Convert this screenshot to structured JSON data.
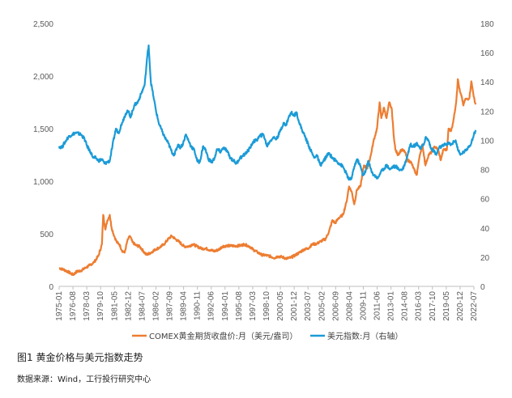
{
  "caption": "图1  黄金价格与美元指数走势",
  "source": "数据来源：Wind，工行投行研究中心",
  "chart_data": {
    "type": "line",
    "title": "",
    "x_categories": [
      "1975-01",
      "1976-08",
      "1978-03",
      "1979-10",
      "1981-05",
      "1982-12",
      "1984-07",
      "1986-02",
      "1987-09",
      "1989-04",
      "1990-11",
      "1992-06",
      "1994-01",
      "1995-08",
      "1997-03",
      "1998-10",
      "2000-05",
      "2001-12",
      "2003-07",
      "2005-02",
      "2006-09",
      "2008-04",
      "2009-11",
      "2011-06",
      "2013-01",
      "2014-08",
      "2016-03",
      "2017-10",
      "2019-05",
      "2020-12",
      "2022-07"
    ],
    "y_left": {
      "ticks": [
        "0",
        "500",
        "1,000",
        "1,500",
        "2,000",
        "2,500"
      ],
      "range": [
        0,
        2500
      ]
    },
    "y_right": {
      "ticks": [
        "0",
        "20",
        "40",
        "60",
        "80",
        "100",
        "120",
        "140",
        "160",
        "180"
      ],
      "range": [
        0,
        180
      ]
    },
    "grid": false,
    "legend_position": "bottom",
    "series": [
      {
        "name": "COMEX黄金期货收盘价:月（美元/盎司）",
        "axis": "left",
        "color": "#ED7D31",
        "points": [
          [
            1975.0,
            175
          ],
          [
            1975.5,
            160
          ],
          [
            1976.0,
            140
          ],
          [
            1976.6,
            110
          ],
          [
            1977.0,
            140
          ],
          [
            1977.5,
            150
          ],
          [
            1978.0,
            175
          ],
          [
            1978.5,
            200
          ],
          [
            1979.0,
            230
          ],
          [
            1979.5,
            290
          ],
          [
            1979.9,
            400
          ],
          [
            1980.05,
            680
          ],
          [
            1980.3,
            540
          ],
          [
            1980.5,
            620
          ],
          [
            1980.8,
            680
          ],
          [
            1981.0,
            560
          ],
          [
            1981.3,
            480
          ],
          [
            1981.6,
            420
          ],
          [
            1981.9,
            400
          ],
          [
            1982.2,
            340
          ],
          [
            1982.5,
            320
          ],
          [
            1982.8,
            430
          ],
          [
            1983.1,
            480
          ],
          [
            1983.4,
            420
          ],
          [
            1983.8,
            390
          ],
          [
            1984.2,
            380
          ],
          [
            1984.6,
            340
          ],
          [
            1985.0,
            300
          ],
          [
            1985.5,
            320
          ],
          [
            1986.0,
            350
          ],
          [
            1986.5,
            370
          ],
          [
            1987.0,
            400
          ],
          [
            1987.5,
            450
          ],
          [
            1987.9,
            480
          ],
          [
            1988.3,
            450
          ],
          [
            1988.8,
            420
          ],
          [
            1989.3,
            380
          ],
          [
            1989.8,
            380
          ],
          [
            1990.3,
            400
          ],
          [
            1990.8,
            380
          ],
          [
            1991.3,
            360
          ],
          [
            1991.8,
            360
          ],
          [
            1992.3,
            345
          ],
          [
            1992.8,
            335
          ],
          [
            1993.3,
            350
          ],
          [
            1993.7,
            380
          ],
          [
            1994.2,
            385
          ],
          [
            1994.7,
            385
          ],
          [
            1995.2,
            385
          ],
          [
            1995.8,
            388
          ],
          [
            1996.2,
            400
          ],
          [
            1996.8,
            380
          ],
          [
            1997.2,
            350
          ],
          [
            1997.7,
            325
          ],
          [
            1998.2,
            300
          ],
          [
            1998.7,
            295
          ],
          [
            1999.2,
            285
          ],
          [
            1999.7,
            270
          ],
          [
            2000.0,
            285
          ],
          [
            2000.5,
            280
          ],
          [
            2001.0,
            265
          ],
          [
            2001.5,
            272
          ],
          [
            2002.0,
            295
          ],
          [
            2002.5,
            320
          ],
          [
            2003.0,
            350
          ],
          [
            2003.5,
            360
          ],
          [
            2004.0,
            400
          ],
          [
            2004.5,
            405
          ],
          [
            2005.0,
            430
          ],
          [
            2005.5,
            450
          ],
          [
            2005.9,
            520
          ],
          [
            2006.3,
            630
          ],
          [
            2006.6,
            600
          ],
          [
            2007.0,
            650
          ],
          [
            2007.5,
            680
          ],
          [
            2007.9,
            800
          ],
          [
            2008.2,
            950
          ],
          [
            2008.5,
            900
          ],
          [
            2008.8,
            780
          ],
          [
            2009.1,
            920
          ],
          [
            2009.5,
            950
          ],
          [
            2009.9,
            1150
          ],
          [
            2010.3,
            1120
          ],
          [
            2010.7,
            1250
          ],
          [
            2011.0,
            1380
          ],
          [
            2011.4,
            1500
          ],
          [
            2011.7,
            1750
          ],
          [
            2011.9,
            1600
          ],
          [
            2012.2,
            1700
          ],
          [
            2012.5,
            1600
          ],
          [
            2012.8,
            1750
          ],
          [
            2013.1,
            1680
          ],
          [
            2013.3,
            1450
          ],
          [
            2013.5,
            1300
          ],
          [
            2013.8,
            1250
          ],
          [
            2014.2,
            1300
          ],
          [
            2014.6,
            1280
          ],
          [
            2014.9,
            1200
          ],
          [
            2015.3,
            1180
          ],
          [
            2015.7,
            1100
          ],
          [
            2015.95,
            1060
          ],
          [
            2016.3,
            1250
          ],
          [
            2016.6,
            1350
          ],
          [
            2016.95,
            1150
          ],
          [
            2017.3,
            1250
          ],
          [
            2017.7,
            1280
          ],
          [
            2018.0,
            1330
          ],
          [
            2018.4,
            1300
          ],
          [
            2018.7,
            1200
          ],
          [
            2019.0,
            1300
          ],
          [
            2019.4,
            1300
          ],
          [
            2019.6,
            1500
          ],
          [
            2019.9,
            1480
          ],
          [
            2020.2,
            1600
          ],
          [
            2020.5,
            1780
          ],
          [
            2020.65,
            1970
          ],
          [
            2020.9,
            1850
          ],
          [
            2021.1,
            1800
          ],
          [
            2021.3,
            1720
          ],
          [
            2021.5,
            1780
          ],
          [
            2021.8,
            1780
          ],
          [
            2022.0,
            1800
          ],
          [
            2022.2,
            1950
          ],
          [
            2022.4,
            1850
          ],
          [
            2022.6,
            1750
          ],
          [
            2022.7,
            1730
          ]
        ]
      },
      {
        "name": "美元指数:月（右轴）",
        "axis": "right",
        "color": "#1B9BD7",
        "points": [
          [
            1975.0,
            96
          ],
          [
            1975.3,
            95
          ],
          [
            1975.6,
            98
          ],
          [
            1975.9,
            101
          ],
          [
            1976.2,
            103
          ],
          [
            1976.5,
            104
          ],
          [
            1976.8,
            105
          ],
          [
            1977.0,
            105
          ],
          [
            1977.5,
            104
          ],
          [
            1977.9,
            101
          ],
          [
            1978.2,
            96
          ],
          [
            1978.6,
            92
          ],
          [
            1978.9,
            88
          ],
          [
            1979.2,
            88
          ],
          [
            1979.5,
            86
          ],
          [
            1979.9,
            87
          ],
          [
            1980.2,
            84
          ],
          [
            1980.5,
            85
          ],
          [
            1980.8,
            86
          ],
          [
            1981.1,
            96
          ],
          [
            1981.5,
            108
          ],
          [
            1981.8,
            105
          ],
          [
            1982.2,
            112
          ],
          [
            1982.6,
            118
          ],
          [
            1982.9,
            120
          ],
          [
            1983.2,
            116
          ],
          [
            1983.6,
            124
          ],
          [
            1984.0,
            126
          ],
          [
            1984.4,
            132
          ],
          [
            1984.8,
            138
          ],
          [
            1985.1,
            158
          ],
          [
            1985.25,
            165
          ],
          [
            1985.5,
            140
          ],
          [
            1985.8,
            130
          ],
          [
            1986.1,
            120
          ],
          [
            1986.4,
            112
          ],
          [
            1986.8,
            106
          ],
          [
            1987.1,
            102
          ],
          [
            1987.5,
            98
          ],
          [
            1987.9,
            92
          ],
          [
            1988.2,
            90
          ],
          [
            1988.6,
            97
          ],
          [
            1988.9,
            95
          ],
          [
            1989.2,
            98
          ],
          [
            1989.5,
            104
          ],
          [
            1989.8,
            100
          ],
          [
            1990.1,
            96
          ],
          [
            1990.5,
            93
          ],
          [
            1990.8,
            86
          ],
          [
            1991.1,
            85
          ],
          [
            1991.5,
            96
          ],
          [
            1991.8,
            93
          ],
          [
            1992.1,
            87
          ],
          [
            1992.5,
            85
          ],
          [
            1992.8,
            88
          ],
          [
            1993.1,
            94
          ],
          [
            1993.5,
            92
          ],
          [
            1993.8,
            95
          ],
          [
            1994.2,
            93
          ],
          [
            1994.6,
            88
          ],
          [
            1995.0,
            86
          ],
          [
            1995.3,
            84
          ],
          [
            1995.7,
            88
          ],
          [
            1996.0,
            89
          ],
          [
            1996.5,
            92
          ],
          [
            1996.9,
            95
          ],
          [
            1997.2,
            99
          ],
          [
            1997.6,
            100
          ],
          [
            1998.0,
            103
          ],
          [
            1998.4,
            104
          ],
          [
            1998.8,
            96
          ],
          [
            1999.1,
            99
          ],
          [
            1999.5,
            102
          ],
          [
            1999.9,
            101
          ],
          [
            2000.3,
            106
          ],
          [
            2000.7,
            112
          ],
          [
            2000.95,
            110
          ],
          [
            2001.3,
            116
          ],
          [
            2001.6,
            119
          ],
          [
            2001.9,
            117
          ],
          [
            2002.2,
            119
          ],
          [
            2002.5,
            112
          ],
          [
            2002.9,
            106
          ],
          [
            2003.2,
            102
          ],
          [
            2003.6,
            96
          ],
          [
            2003.9,
            92
          ],
          [
            2004.2,
            88
          ],
          [
            2004.5,
            90
          ],
          [
            2004.9,
            83
          ],
          [
            2005.2,
            85
          ],
          [
            2005.6,
            89
          ],
          [
            2005.9,
            91
          ],
          [
            2006.3,
            88
          ],
          [
            2006.7,
            86
          ],
          [
            2007.1,
            84
          ],
          [
            2007.5,
            82
          ],
          [
            2007.9,
            77
          ],
          [
            2008.2,
            73
          ],
          [
            2008.5,
            74
          ],
          [
            2008.8,
            82
          ],
          [
            2009.1,
            87
          ],
          [
            2009.4,
            84
          ],
          [
            2009.8,
            76
          ],
          [
            2010.1,
            79
          ],
          [
            2010.4,
            86
          ],
          [
            2010.8,
            78
          ],
          [
            2011.1,
            76
          ],
          [
            2011.5,
            74
          ],
          [
            2011.8,
            78
          ],
          [
            2012.1,
            80
          ],
          [
            2012.5,
            83
          ],
          [
            2012.9,
            80
          ],
          [
            2013.2,
            82
          ],
          [
            2013.6,
            82
          ],
          [
            2013.9,
            80
          ],
          [
            2014.3,
            80
          ],
          [
            2014.6,
            84
          ],
          [
            2014.9,
            90
          ],
          [
            2015.2,
            97
          ],
          [
            2015.6,
            96
          ],
          [
            2016.0,
            98
          ],
          [
            2016.4,
            94
          ],
          [
            2016.8,
            98
          ],
          [
            2016.95,
            102
          ],
          [
            2017.3,
            100
          ],
          [
            2017.6,
            94
          ],
          [
            2017.9,
            93
          ],
          [
            2018.2,
            90
          ],
          [
            2018.5,
            95
          ],
          [
            2018.9,
            96
          ],
          [
            2019.2,
            97
          ],
          [
            2019.6,
            98
          ],
          [
            2019.9,
            97
          ],
          [
            2020.2,
            99
          ],
          [
            2020.4,
            100
          ],
          [
            2020.7,
            93
          ],
          [
            2020.95,
            90
          ],
          [
            2021.3,
            92
          ],
          [
            2021.6,
            93
          ],
          [
            2021.9,
            96
          ],
          [
            2022.2,
            98
          ],
          [
            2022.5,
            104
          ],
          [
            2022.7,
            107
          ]
        ]
      }
    ]
  }
}
